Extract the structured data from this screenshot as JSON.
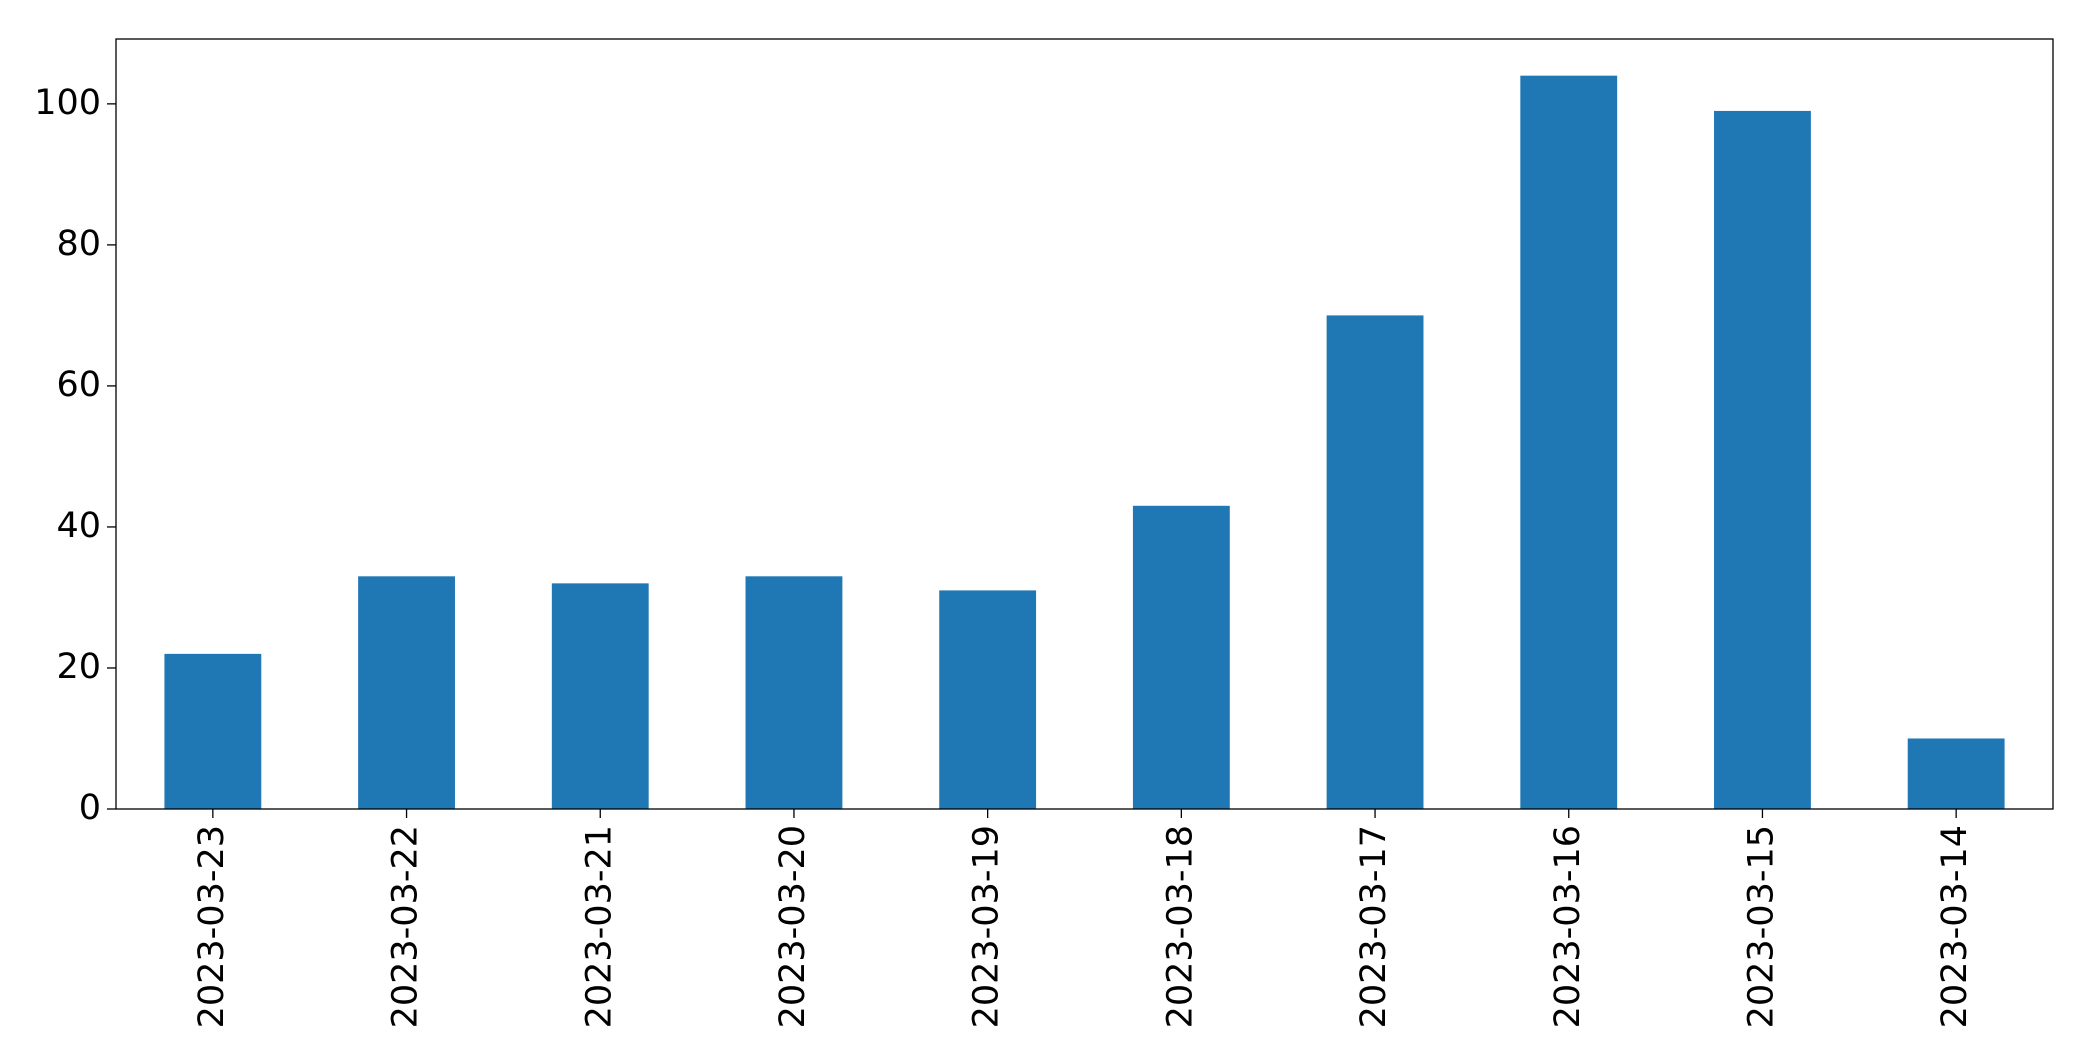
{
  "chart_data": {
    "type": "bar",
    "categories": [
      "2023-03-23",
      "2023-03-22",
      "2023-03-21",
      "2023-03-20",
      "2023-03-19",
      "2023-03-18",
      "2023-03-17",
      "2023-03-16",
      "2023-03-15",
      "2023-03-14"
    ],
    "values": [
      22,
      33,
      32,
      33,
      31,
      43,
      70,
      104,
      99,
      10
    ],
    "color": "#1f77b4",
    "ylim": [
      0,
      109.2
    ],
    "yticks": [
      0,
      20,
      40,
      60,
      80,
      100
    ],
    "grid": false
  }
}
